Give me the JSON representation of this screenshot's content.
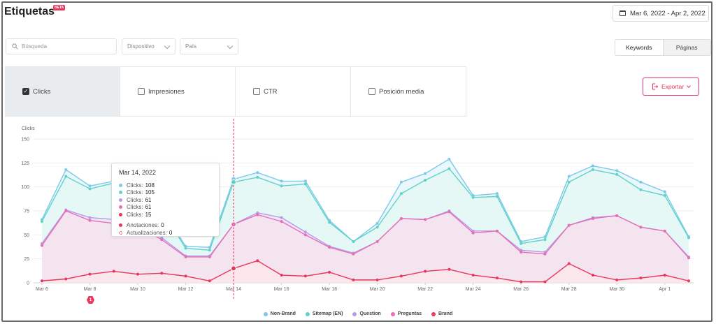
{
  "header": {
    "title": "Etiquetas",
    "badge": "BETA",
    "date_range": "Mar 6, 2022 - Apr 2, 2022"
  },
  "filters": {
    "search_placeholder": "Búsqueda",
    "device_label": "Dispositivo",
    "country_label": "País"
  },
  "view_toggle": {
    "keywords": "Keywords",
    "pages": "Páginas"
  },
  "metrics": [
    {
      "label": "Clicks",
      "checked": true
    },
    {
      "label": "Impresiones",
      "checked": false
    },
    {
      "label": "CTR",
      "checked": false
    },
    {
      "label": "Posición media",
      "checked": false
    }
  ],
  "export_label": "Exportar",
  "annotation_marker": "1",
  "tooltip": {
    "date": "Mar 14, 2022",
    "rows": [
      {
        "label": "Clicks:",
        "value": "108",
        "color": "#7cc9ea"
      },
      {
        "label": "Clicks:",
        "value": "105",
        "color": "#5fd3c6"
      },
      {
        "label": "Clicks:",
        "value": "61",
        "color": "#b79be6"
      },
      {
        "label": "Clicks:",
        "value": "61",
        "color": "#e86cb6"
      },
      {
        "label": "Clicks:",
        "value": "15",
        "color": "#e8365d"
      }
    ],
    "annotations": "Anotaciones:",
    "annotations_val": "0",
    "updates": "Actualizaciones:",
    "updates_val": "0"
  },
  "chart_data": {
    "type": "line",
    "ylabel": "Clicks",
    "ylim": [
      0,
      150
    ],
    "yticks": [
      0,
      25,
      50,
      75,
      100,
      125,
      150
    ],
    "x": [
      "Mar 6",
      "Mar 7",
      "Mar 8",
      "Mar 9",
      "Mar 10",
      "Mar 11",
      "Mar 12",
      "Mar 13",
      "Mar 14",
      "Mar 15",
      "Mar 16",
      "Mar 17",
      "Mar 18",
      "Mar 19",
      "Mar 20",
      "Mar 21",
      "Mar 22",
      "Mar 23",
      "Mar 24",
      "Mar 25",
      "Mar 26",
      "Mar 27",
      "Mar 28",
      "Mar 29",
      "Mar 30",
      "Mar 31",
      "Apr 1",
      "Apr 2"
    ],
    "xtick_labels": [
      "Mar 6",
      "Mar 8",
      "Mar 10",
      "Mar 12",
      "Mar 14",
      "Mar 16",
      "Mar 18",
      "Mar 20",
      "Mar 22",
      "Mar 24",
      "Mar 26",
      "Mar 28",
      "Mar 30",
      "Apr 1"
    ],
    "highlight": "Mar 14",
    "series": [
      {
        "name": "Non-Brand",
        "color": "#7cc9ea",
        "values": [
          66,
          118,
          101,
          106,
          95,
          78,
          38,
          37,
          108,
          115,
          106,
          106,
          65,
          43,
          62,
          105,
          114,
          129,
          91,
          93,
          43,
          48,
          111,
          122,
          117,
          105,
          95,
          48
        ]
      },
      {
        "name": "Sitemap (EN)",
        "color": "#5fd3c6",
        "values": [
          64,
          111,
          98,
          104,
          93,
          76,
          36,
          34,
          105,
          110,
          101,
          103,
          63,
          43,
          58,
          93,
          107,
          119,
          89,
          90,
          41,
          45,
          105,
          118,
          113,
          97,
          91,
          47
        ]
      },
      {
        "name": "Question",
        "color": "#b79be6",
        "values": [
          41,
          76,
          68,
          66,
          62,
          47,
          28,
          28,
          61,
          73,
          68,
          53,
          38,
          31,
          43,
          67,
          66,
          75,
          54,
          54,
          34,
          32,
          60,
          68,
          70,
          58,
          54,
          27
        ]
      },
      {
        "name": "Preguntas",
        "color": "#e86cb6",
        "values": [
          39,
          75,
          65,
          62,
          59,
          45,
          27,
          27,
          61,
          71,
          64,
          50,
          37,
          30,
          43,
          67,
          66,
          74,
          52,
          54,
          32,
          30,
          60,
          67,
          70,
          58,
          54,
          26
        ]
      },
      {
        "name": "Brand",
        "color": "#e8365d",
        "values": [
          2,
          4,
          9,
          12,
          9,
          10,
          7,
          2,
          15,
          23,
          8,
          7,
          11,
          3,
          3,
          7,
          12,
          14,
          8,
          5,
          1,
          1,
          20,
          8,
          3,
          5,
          8,
          2
        ]
      }
    ]
  }
}
